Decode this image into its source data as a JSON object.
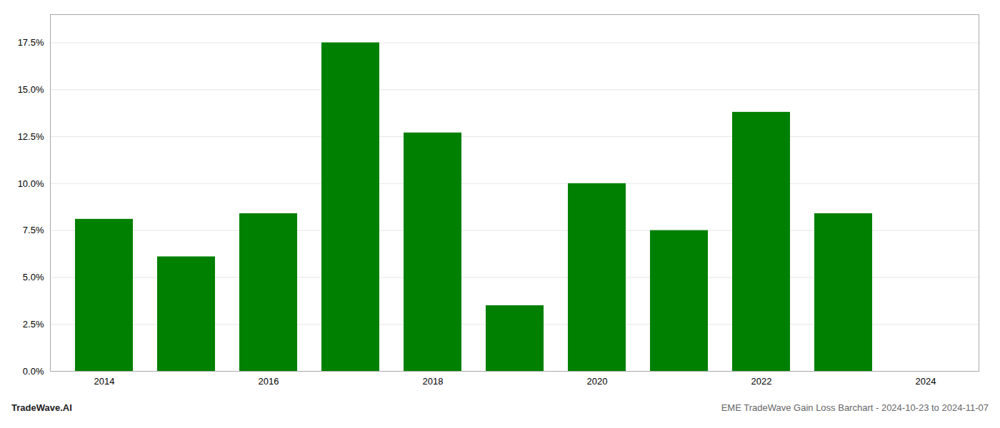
{
  "chart_data": {
    "type": "bar",
    "title": "EME TradeWave Gain Loss Barchart - 2024-10-23 to 2024-11-07",
    "annotations": [
      "TradeWave.AI"
    ],
    "categories": [
      "2014",
      null,
      "2016",
      null,
      "2018",
      null,
      "2020",
      null,
      "2022",
      null,
      "2024"
    ],
    "values": [
      0.081,
      0.061,
      0.084,
      0.175,
      0.127,
      0.035,
      0.1,
      0.075,
      0.138,
      0.084,
      null
    ],
    "color": "#008000",
    "ylim": [
      0,
      0.19
    ],
    "yticks": [
      {
        "value": 0,
        "label": "0.0%"
      },
      {
        "value": 0.025,
        "label": "2.5%"
      },
      {
        "value": 0.05,
        "label": "5.0%"
      },
      {
        "value": 0.075,
        "label": "7.5%"
      },
      {
        "value": 0.1,
        "label": "10.0%"
      },
      {
        "value": 0.125,
        "label": "12.5%"
      },
      {
        "value": 0.15,
        "label": "15.0%"
      },
      {
        "value": 0.175,
        "label": "17.5%"
      }
    ],
    "grid": true
  }
}
